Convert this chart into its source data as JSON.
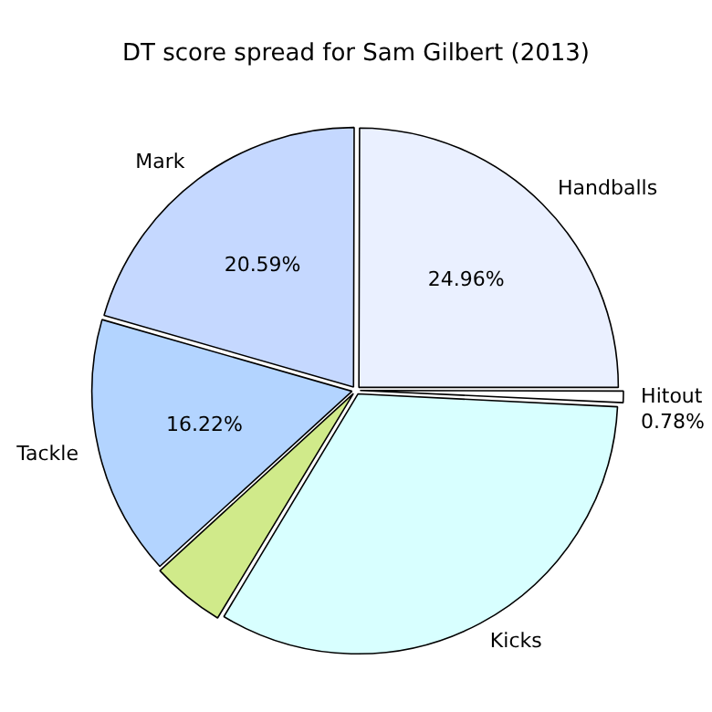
{
  "chart_data": {
    "type": "pie",
    "title": "DT score spread for Sam Gilbert (2013)",
    "categories": [
      "Hitout",
      "Kicks",
      null,
      "Tackle",
      "Mark",
      "Handballs"
    ],
    "values": [
      0.78,
      32.85,
      4.6,
      16.22,
      20.59,
      24.96
    ],
    "colors": [
      "#ffffff",
      "#d8ffff",
      "#d0ea8a",
      "#b3d4ff",
      "#c5d8ff",
      "#eaf0ff"
    ],
    "value_labels": [
      "0.78%",
      null,
      null,
      "16.22%",
      "20.59%",
      "24.96%"
    ],
    "legend": false
  }
}
